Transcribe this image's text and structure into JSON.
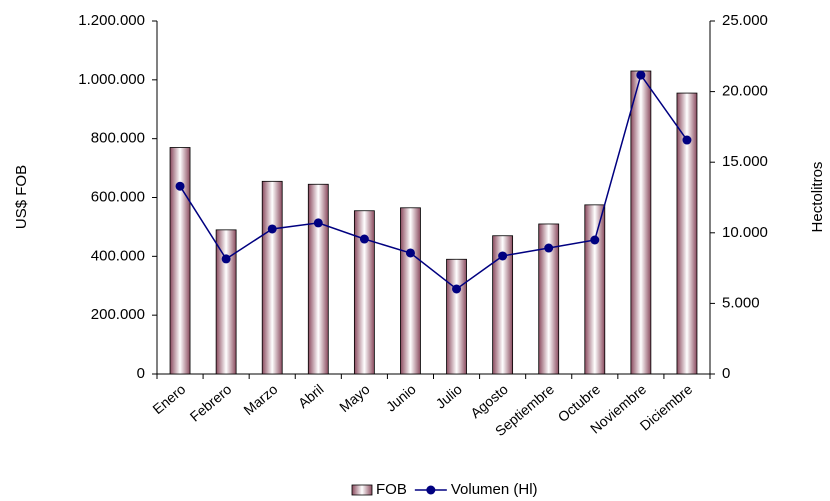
{
  "chart_data": {
    "type": "bar_line",
    "ylabel": "US$ FOB",
    "y2label": "Hectolitros",
    "categories": [
      "Enero",
      "Febrero",
      "Marzo",
      "Abril",
      "Mayo",
      "Junio",
      "Julio",
      "Agosto",
      "Septiembre",
      "Octubre",
      "Noviembre",
      "Diciembre"
    ],
    "series": [
      {
        "name": "FOB",
        "type": "bar",
        "color": "#8a4a5e",
        "values": [
          770000,
          490000,
          655000,
          645000,
          555000,
          565000,
          390000,
          470000,
          510000,
          575000,
          1030000,
          955000
        ]
      },
      {
        "name": "Volumen (Hl)",
        "type": "line",
        "axis": "y2",
        "color": "#000080",
        "values": [
          13300,
          8150,
          10270,
          10700,
          9560,
          8570,
          6020,
          8360,
          8920,
          9490,
          21170,
          16570
        ]
      }
    ],
    "ylim": [
      0,
      1200000
    ],
    "yticks": [
      0,
      {
        "value": 200000,
        "label": "200.000"
      },
      {
        "value": 400000,
        "label": "400.000"
      },
      {
        "value": 600000,
        "label": "600.000"
      },
      {
        "value": 800000,
        "label": "800.000"
      },
      {
        "value": 1000000,
        "label": "1.000.000"
      },
      {
        "value": 1200000,
        "label": "1.200.000"
      }
    ],
    "y2lim": [
      0,
      25000
    ],
    "y2ticks": [
      0,
      {
        "value": 5000,
        "label": "5.000"
      },
      {
        "value": 10000,
        "label": "10.000"
      },
      {
        "value": 15000,
        "label": "15.000"
      },
      {
        "value": 20000,
        "label": "20.000"
      },
      {
        "value": 25000,
        "label": "25.000"
      }
    ],
    "grid": false,
    "legend": "bottom"
  }
}
